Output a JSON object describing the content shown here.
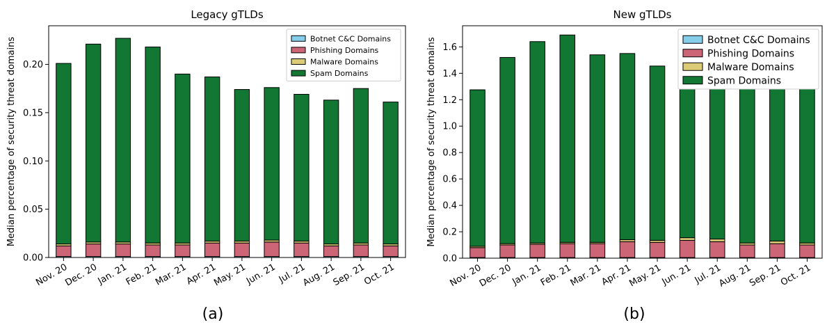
{
  "chart_data": [
    {
      "type": "bar",
      "stacked": true,
      "title": "Legacy gTLDs",
      "ylabel": "Median percentage of security threat domains",
      "xlabel": "",
      "panel_label": "(a)",
      "ylim": [
        0,
        0.24
      ],
      "yticks": [
        0.0,
        0.05,
        0.1,
        0.15,
        0.2
      ],
      "ytick_labels": [
        "0.00",
        "0.05",
        "0.10",
        "0.15",
        "0.20"
      ],
      "categories": [
        "Nov. 20",
        "Dec. 20",
        "Jan. 21",
        "Feb. 21",
        "Mar. 21",
        "Apr. 21",
        "May. 21",
        "Jun. 21",
        "Jul. 21",
        "Aug. 21",
        "Sep. 21",
        "Oct. 21"
      ],
      "legend_position": "top-right",
      "legend_size": "small",
      "series": [
        {
          "name": "Botnet C&C Domains",
          "color": "#87ceeb",
          "values": [
            0.001,
            0.001,
            0.001,
            0.001,
            0.001,
            0.001,
            0.001,
            0.001,
            0.001,
            0.001,
            0.001,
            0.001
          ]
        },
        {
          "name": "Phishing Domains",
          "color": "#cc6677",
          "values": [
            0.011,
            0.013,
            0.013,
            0.012,
            0.012,
            0.014,
            0.014,
            0.015,
            0.014,
            0.011,
            0.012,
            0.011
          ]
        },
        {
          "name": "Malware Domains",
          "color": "#ddcc77",
          "values": [
            0.002,
            0.002,
            0.002,
            0.002,
            0.002,
            0.002,
            0.002,
            0.002,
            0.002,
            0.002,
            0.002,
            0.002
          ]
        },
        {
          "name": "Spam Domains",
          "color": "#117733",
          "values": [
            0.187,
            0.205,
            0.211,
            0.203,
            0.175,
            0.17,
            0.157,
            0.158,
            0.152,
            0.149,
            0.16,
            0.147
          ]
        }
      ]
    },
    {
      "type": "bar",
      "stacked": true,
      "title": "New gTLDs",
      "ylabel": "Median percentage of security threat domains",
      "xlabel": "",
      "panel_label": "(b)",
      "ylim": [
        0,
        1.76
      ],
      "yticks": [
        0.0,
        0.2,
        0.4,
        0.6,
        0.8,
        1.0,
        1.2,
        1.4,
        1.6
      ],
      "ytick_labels": [
        "0.0",
        "0.2",
        "0.4",
        "0.6",
        "0.8",
        "1.0",
        "1.2",
        "1.4",
        "1.6"
      ],
      "categories": [
        "Nov. 20",
        "Dec. 20",
        "Jan. 21",
        "Feb. 21",
        "Mar. 21",
        "Apr. 21",
        "May. 21",
        "Jun. 21",
        "Jul. 21",
        "Aug. 21",
        "Sep. 21",
        "Oct. 21"
      ],
      "legend_position": "top-right",
      "legend_size": "large",
      "series": [
        {
          "name": "Botnet C&C Domains",
          "color": "#87ceeb",
          "values": [
            0.005,
            0.005,
            0.005,
            0.005,
            0.005,
            0.005,
            0.005,
            0.005,
            0.005,
            0.005,
            0.005,
            0.005
          ]
        },
        {
          "name": "Phishing Domains",
          "color": "#cc6677",
          "values": [
            0.075,
            0.095,
            0.1,
            0.105,
            0.105,
            0.12,
            0.115,
            0.13,
            0.12,
            0.095,
            0.105,
            0.095
          ]
        },
        {
          "name": "Malware Domains",
          "color": "#ddcc77",
          "values": [
            0.01,
            0.01,
            0.01,
            0.01,
            0.01,
            0.015,
            0.015,
            0.02,
            0.02,
            0.015,
            0.02,
            0.015
          ]
        },
        {
          "name": "Spam Domains",
          "color": "#117733",
          "values": [
            1.185,
            1.41,
            1.525,
            1.57,
            1.42,
            1.41,
            1.32,
            1.345,
            1.255,
            1.255,
            1.3,
            1.185
          ]
        }
      ]
    }
  ]
}
